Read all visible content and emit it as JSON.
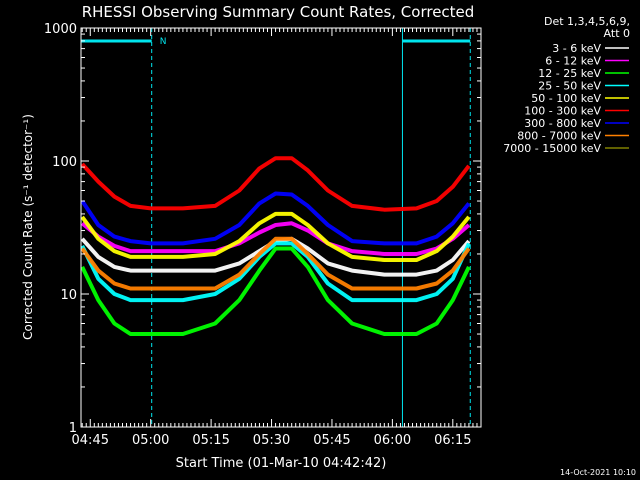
{
  "chart_data": {
    "type": "line",
    "title": "RHESSI Observing Summary Count Rates, Corrected",
    "xlabel": "Start Time (01-Mar-10 04:42:42)",
    "ylabel": "Corrected Count Rate (s⁻¹ detector⁻¹)",
    "ylim": [
      1,
      1000
    ],
    "yscale": "log",
    "ytick_labels": [
      "1",
      "10",
      "100",
      "1000"
    ],
    "xlim": [
      "04:42:42",
      "06:22:00"
    ],
    "xtick_labels": [
      "04:45",
      "05:00",
      "05:15",
      "05:30",
      "05:45",
      "06:00",
      "06:15"
    ],
    "grid": false,
    "legend_placement": "right",
    "legend_header": [
      "Det 1,3,4,5,6,9,",
      "Att 0"
    ],
    "timestamp": "14-Oct-2021 10:10",
    "annotations": [
      {
        "text": "N",
        "color": "#00e5ee"
      }
    ],
    "night_intervals": [
      {
        "start": "04:42:42",
        "end": "05:00:15"
      },
      {
        "start": "06:02:30",
        "end": "06:19:20"
      }
    ],
    "series": [
      {
        "name": "3 - 6 keV",
        "color": "#ffffff",
        "x": [
          "04:43",
          "04:47",
          "04:51",
          "04:55",
          "05:00",
          "05:08",
          "05:16",
          "05:22",
          "05:27",
          "05:31",
          "05:35",
          "05:39",
          "05:44",
          "05:50",
          "05:58",
          "06:06",
          "06:11",
          "06:15",
          "06:19"
        ],
        "values": [
          26,
          19,
          16,
          15,
          15,
          15,
          15,
          17,
          21,
          25,
          26,
          22,
          17,
          15,
          14,
          14,
          15,
          18,
          25
        ]
      },
      {
        "name": "6 - 12 keV",
        "color": "#ff00ff",
        "x": [
          "04:43",
          "04:47",
          "04:51",
          "04:55",
          "05:00",
          "05:08",
          "05:16",
          "05:22",
          "05:27",
          "05:31",
          "05:35",
          "05:39",
          "05:44",
          "05:50",
          "05:58",
          "06:06",
          "06:11",
          "06:15",
          "06:19"
        ],
        "values": [
          34,
          27,
          23,
          21,
          21,
          21,
          21,
          24,
          29,
          33,
          34,
          30,
          24,
          21,
          20,
          20,
          22,
          26,
          33
        ]
      },
      {
        "name": "12 - 25 keV",
        "color": "#00ff00",
        "x": [
          "04:43",
          "04:47",
          "04:51",
          "04:55",
          "05:00",
          "05:08",
          "05:16",
          "05:22",
          "05:27",
          "05:31",
          "05:35",
          "05:39",
          "05:44",
          "05:50",
          "05:58",
          "06:06",
          "06:11",
          "06:15",
          "06:19"
        ],
        "values": [
          16,
          9,
          6,
          5,
          5,
          5,
          6,
          9,
          15,
          22,
          22,
          16,
          9,
          6,
          5,
          5,
          6,
          9,
          16
        ]
      },
      {
        "name": "25 - 50 keV",
        "color": "#00ffff",
        "x": [
          "04:43",
          "04:47",
          "04:51",
          "04:55",
          "05:00",
          "05:08",
          "05:16",
          "05:22",
          "05:27",
          "05:31",
          "05:35",
          "05:39",
          "05:44",
          "05:50",
          "05:58",
          "06:06",
          "06:11",
          "06:15",
          "06:19"
        ],
        "values": [
          23,
          13,
          10,
          9,
          9,
          9,
          10,
          13,
          19,
          24,
          24,
          19,
          12,
          9,
          9,
          9,
          10,
          13,
          24
        ]
      },
      {
        "name": "50 - 100 keV",
        "color": "#ffff00",
        "x": [
          "04:43",
          "04:47",
          "04:51",
          "04:55",
          "05:00",
          "05:08",
          "05:16",
          "05:22",
          "05:27",
          "05:31",
          "05:35",
          "05:39",
          "05:44",
          "05:50",
          "05:58",
          "06:06",
          "06:11",
          "06:15",
          "06:19"
        ],
        "values": [
          38,
          26,
          21,
          19,
          19,
          19,
          20,
          25,
          34,
          40,
          40,
          33,
          24,
          19,
          18,
          18,
          21,
          27,
          38
        ]
      },
      {
        "name": "100 - 300 keV",
        "color": "#ff0000",
        "x": [
          "04:43",
          "04:47",
          "04:51",
          "04:55",
          "05:00",
          "05:08",
          "05:16",
          "05:22",
          "05:27",
          "05:31",
          "05:35",
          "05:39",
          "05:44",
          "05:50",
          "05:58",
          "06:06",
          "06:11",
          "06:15",
          "06:19"
        ],
        "values": [
          95,
          70,
          54,
          46,
          44,
          44,
          46,
          60,
          88,
          105,
          105,
          85,
          60,
          46,
          43,
          44,
          50,
          64,
          92
        ]
      },
      {
        "name": "300 - 800 keV",
        "color": "#0000ff",
        "x": [
          "04:43",
          "04:47",
          "04:51",
          "04:55",
          "05:00",
          "05:08",
          "05:16",
          "05:22",
          "05:27",
          "05:31",
          "05:35",
          "05:39",
          "05:44",
          "05:50",
          "05:58",
          "06:06",
          "06:11",
          "06:15",
          "06:19"
        ],
        "values": [
          50,
          33,
          27,
          25,
          24,
          24,
          26,
          33,
          48,
          57,
          56,
          46,
          33,
          25,
          24,
          24,
          27,
          34,
          48
        ]
      },
      {
        "name": "800 - 7000 keV",
        "color": "#ff8000",
        "x": [
          "04:43",
          "04:47",
          "04:51",
          "04:55",
          "05:00",
          "05:08",
          "05:16",
          "05:22",
          "05:27",
          "05:31",
          "05:35",
          "05:39",
          "05:44",
          "05:50",
          "05:58",
          "06:06",
          "06:11",
          "06:15",
          "06:19"
        ],
        "values": [
          22,
          15,
          12,
          11,
          11,
          11,
          11,
          14,
          20,
          26,
          26,
          20,
          14,
          11,
          11,
          11,
          12,
          15,
          22
        ]
      },
      {
        "name": "7000 - 15000 keV",
        "color": "#808000",
        "x": [],
        "values": []
      }
    ]
  }
}
